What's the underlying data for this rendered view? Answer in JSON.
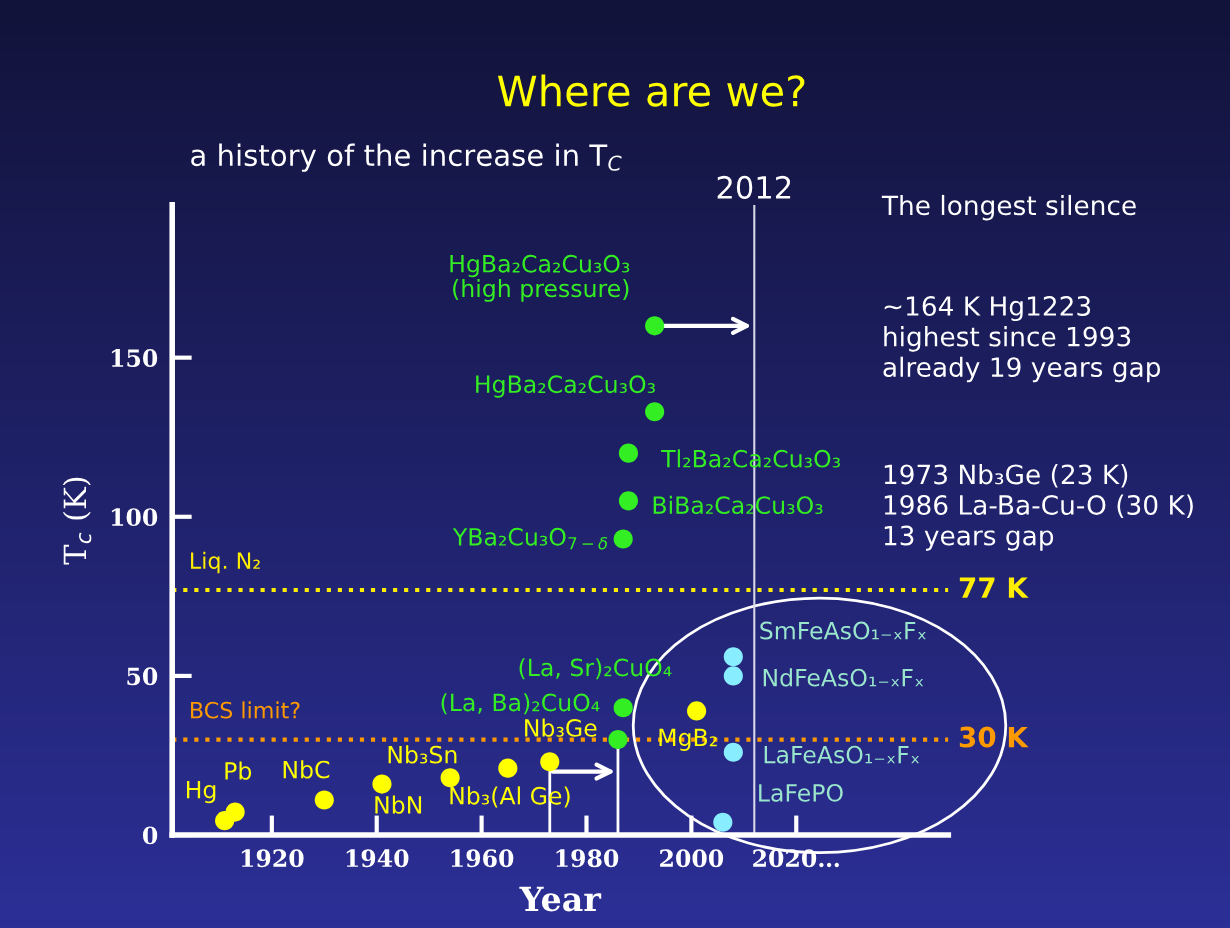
{
  "chart_data": {
    "type": "scatter",
    "title": "Where are we?",
    "subtitle": "a history of the increase in T$_{C}$",
    "xlabel": "Year",
    "ylabel": "T$_{c}$ (K)",
    "xlim": [
      1901,
      2049
    ],
    "ylim": [
      0,
      198
    ],
    "xticks": [
      1920,
      1940,
      1960,
      1980,
      2000,
      {
        "value": 2020,
        "label": "2020…"
      }
    ],
    "yticks": [
      0,
      50,
      100,
      150
    ],
    "grid": false,
    "legend": false,
    "marker": "circle",
    "series": [
      {
        "color": "#ffff00",
        "x": [
          1911,
          1913,
          1930,
          1941,
          1954,
          1965,
          1973,
          2001
        ],
        "values": [
          4.5,
          7.2,
          11,
          16,
          18,
          21,
          23,
          39
        ]
      },
      {
        "color": "#33ee22",
        "x": [
          1993,
          1993,
          1988,
          1988,
          1987,
          1987,
          1986
        ],
        "values": [
          160,
          133,
          120,
          105,
          93,
          40,
          30
        ]
      },
      {
        "color": "#88eeff",
        "x": [
          2008,
          2008,
          2008,
          2006
        ],
        "values": [
          56,
          50,
          26,
          4
        ]
      }
    ],
    "ref_lines": [
      {
        "axis": "y",
        "value": 77,
        "label": "77 K",
        "color": "#ffee00",
        "line_style": "dotted"
      },
      {
        "axis": "y",
        "value": 30,
        "label": "30 K",
        "color": "#ff9900",
        "line_style": "dotted"
      },
      {
        "axis": "x",
        "value": 2012,
        "label": "2012",
        "color": "#d8d8e8",
        "line_style": "solid"
      }
    ],
    "annotations": [
      "Liq. N₂",
      "BCS limit?",
      "The longest silence",
      "~164 K Hg1223\nhighest since 1993\nalready 19 years gap",
      "1973 Nb₃Ge (23 K)\n1986 La-Ba-Cu-O (30 K)\n13 years gap",
      {
        "text": "Hg",
        "x": 1911,
        "y": 4.5
      },
      {
        "text": "Pb",
        "x": 1913,
        "y": 7.2
      },
      {
        "text": "NbC",
        "x": 1930,
        "y": 11
      },
      {
        "text": "NbN",
        "x": 1941,
        "y": 16
      },
      {
        "text": "Nb₃Sn",
        "x": 1954,
        "y": 18
      },
      {
        "text": "Nb₃(Al Ge)",
        "x": 1965,
        "y": 21
      },
      {
        "text": "Nb₃Ge",
        "x": 1973,
        "y": 23
      },
      {
        "text": "MgB₂",
        "x": 2001,
        "y": 39
      },
      {
        "text": "(La, Ba)₂CuO₄",
        "x": 1986,
        "y": 30
      },
      {
        "text": "(La, Sr)₂CuO₄",
        "x": 1987,
        "y": 40
      },
      {
        "text": "YBa₂Cu₃O$_{7−δ}$",
        "x": 1987,
        "y": 93
      },
      {
        "text": "BiBa₂Ca₂Cu₃O₃",
        "x": 1988,
        "y": 105
      },
      {
        "text": "Tl₂Ba₂Ca₂Cu₃O₃",
        "x": 1988,
        "y": 120
      },
      {
        "text": "HgBa₂Ca₂Cu₃O₃",
        "x": 1993,
        "y": 133
      },
      {
        "text": "HgBa₂Ca₂Cu₃O₃\n(high pressure)",
        "x": 1993,
        "y": 160
      },
      {
        "text": "SmFeAsO₁₋ₓFₓ",
        "x": 2008,
        "y": 56
      },
      {
        "text": "NdFeAsO₁₋ₓFₓ",
        "x": 2008,
        "y": 50
      },
      {
        "text": "LaFeAsO₁₋ₓFₓ",
        "x": 2008,
        "y": 26
      },
      {
        "text": "LaFePO",
        "x": 2006,
        "y": 4
      }
    ]
  }
}
